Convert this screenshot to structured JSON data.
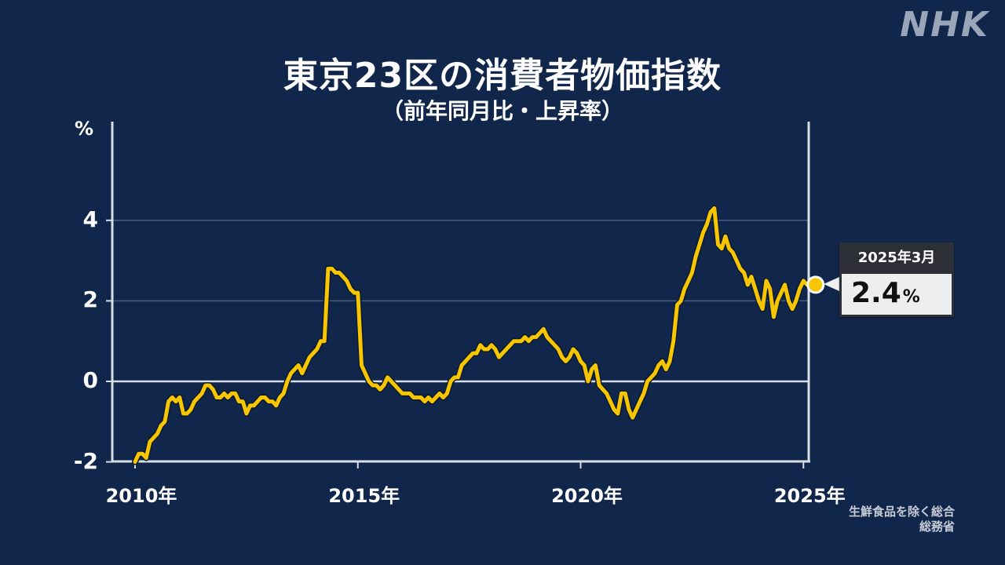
{
  "brand": {
    "logo_text": "NHK"
  },
  "header": {
    "title": "東京23区の消費者物価指数",
    "subtitle": "（前年同月比・上昇率）"
  },
  "axis": {
    "y_unit": "%",
    "y_ticks": [
      {
        "label": "4",
        "value": 4
      },
      {
        "label": "2",
        "value": 2
      },
      {
        "label": "0",
        "value": 0
      },
      {
        "label": "-2",
        "value": -2
      }
    ],
    "x_ticks": [
      {
        "label": "2010年",
        "value": 2010
      },
      {
        "label": "2015年",
        "value": 2015
      },
      {
        "label": "2020年",
        "value": 2020
      },
      {
        "label": "2025年",
        "value": 2025
      }
    ]
  },
  "callout": {
    "date": "2025年3月",
    "value": "2.4",
    "unit": "%"
  },
  "source": {
    "line1": "生鮮食品を除く総合",
    "line2": "総務省"
  },
  "colors": {
    "background": "#10264a",
    "line": "#f7c600",
    "axis": "#d8dde6",
    "gridline": "#4a5e80",
    "callout_header": "#2c2f36",
    "callout_body": "#eceef0"
  },
  "chart_data": {
    "type": "line",
    "title": "東京23区の消費者物価指数",
    "subtitle": "（前年同月比・上昇率）",
    "xlabel": "",
    "ylabel": "%",
    "ylim": [
      -2,
      6.4
    ],
    "xlim": [
      2009.5,
      2025.2
    ],
    "grid": "horizontal at 2 and 4; zero line emphasized",
    "legend": "none",
    "annotation": {
      "label": "2025年3月",
      "value": 2.4,
      "unit": "%"
    },
    "note": "生鮮食品を除く総合 / 総務省",
    "series": [
      {
        "name": "東京23区 CPI（生鮮食品を除く総合）前年同月比",
        "x": [
          2010.0,
          2010.083,
          2010.167,
          2010.25,
          2010.333,
          2010.417,
          2010.5,
          2010.583,
          2010.667,
          2010.75,
          2010.833,
          2010.917,
          2011.0,
          2011.083,
          2011.167,
          2011.25,
          2011.333,
          2011.417,
          2011.5,
          2011.583,
          2011.667,
          2011.75,
          2011.833,
          2011.917,
          2012.0,
          2012.083,
          2012.167,
          2012.25,
          2012.333,
          2012.417,
          2012.5,
          2012.583,
          2012.667,
          2012.75,
          2012.833,
          2012.917,
          2013.0,
          2013.083,
          2013.167,
          2013.25,
          2013.333,
          2013.417,
          2013.5,
          2013.583,
          2013.667,
          2013.75,
          2013.833,
          2013.917,
          2014.0,
          2014.083,
          2014.167,
          2014.25,
          2014.333,
          2014.417,
          2014.5,
          2014.583,
          2014.667,
          2014.75,
          2014.833,
          2014.917,
          2015.0,
          2015.083,
          2015.167,
          2015.25,
          2015.333,
          2015.417,
          2015.5,
          2015.583,
          2015.667,
          2015.75,
          2015.833,
          2015.917,
          2016.0,
          2016.083,
          2016.167,
          2016.25,
          2016.333,
          2016.417,
          2016.5,
          2016.583,
          2016.667,
          2016.75,
          2016.833,
          2016.917,
          2017.0,
          2017.083,
          2017.167,
          2017.25,
          2017.333,
          2017.417,
          2017.5,
          2017.583,
          2017.667,
          2017.75,
          2017.833,
          2017.917,
          2018.0,
          2018.083,
          2018.167,
          2018.25,
          2018.333,
          2018.417,
          2018.5,
          2018.583,
          2018.667,
          2018.75,
          2018.833,
          2018.917,
          2019.0,
          2019.083,
          2019.167,
          2019.25,
          2019.333,
          2019.417,
          2019.5,
          2019.583,
          2019.667,
          2019.75,
          2019.833,
          2019.917,
          2020.0,
          2020.083,
          2020.167,
          2020.25,
          2020.333,
          2020.417,
          2020.5,
          2020.583,
          2020.667,
          2020.75,
          2020.833,
          2020.917,
          2021.0,
          2021.083,
          2021.167,
          2021.25,
          2021.333,
          2021.417,
          2021.5,
          2021.583,
          2021.667,
          2021.75,
          2021.833,
          2021.917,
          2022.0,
          2022.083,
          2022.167,
          2022.25,
          2022.333,
          2022.417,
          2022.5,
          2022.583,
          2022.667,
          2022.75,
          2022.833,
          2022.917,
          2023.0,
          2023.083,
          2023.167,
          2023.25,
          2023.333,
          2023.417,
          2023.5,
          2023.583,
          2023.667,
          2023.75,
          2023.833,
          2023.917,
          2024.0,
          2024.083,
          2024.167,
          2024.25,
          2024.333,
          2024.417,
          2024.5,
          2024.583,
          2024.667,
          2024.75,
          2024.833,
          2024.917,
          2025.0,
          2025.083,
          2025.167
        ],
        "values": [
          -2.0,
          -1.8,
          -1.8,
          -1.9,
          -1.5,
          -1.4,
          -1.3,
          -1.1,
          -1.0,
          -0.5,
          -0.4,
          -0.5,
          -0.4,
          -0.8,
          -0.8,
          -0.7,
          -0.5,
          -0.4,
          -0.3,
          -0.1,
          -0.1,
          -0.2,
          -0.4,
          -0.4,
          -0.3,
          -0.4,
          -0.3,
          -0.3,
          -0.5,
          -0.5,
          -0.8,
          -0.6,
          -0.6,
          -0.5,
          -0.4,
          -0.4,
          -0.5,
          -0.5,
          -0.6,
          -0.4,
          -0.3,
          0.0,
          0.2,
          0.3,
          0.4,
          0.2,
          0.4,
          0.6,
          0.7,
          0.8,
          1.0,
          1.0,
          2.8,
          2.8,
          2.7,
          2.7,
          2.6,
          2.5,
          2.3,
          2.2,
          2.2,
          0.4,
          0.2,
          0.0,
          -0.1,
          -0.1,
          -0.2,
          -0.1,
          0.1,
          0.0,
          -0.1,
          -0.2,
          -0.3,
          -0.3,
          -0.3,
          -0.4,
          -0.4,
          -0.4,
          -0.5,
          -0.4,
          -0.5,
          -0.4,
          -0.3,
          -0.4,
          -0.3,
          0.0,
          0.1,
          0.1,
          0.4,
          0.5,
          0.6,
          0.7,
          0.7,
          0.9,
          0.8,
          0.8,
          0.9,
          0.8,
          0.6,
          0.7,
          0.8,
          0.9,
          1.0,
          1.0,
          1.0,
          1.1,
          1.0,
          1.1,
          1.1,
          1.2,
          1.3,
          1.1,
          1.0,
          0.9,
          0.8,
          0.6,
          0.5,
          0.6,
          0.8,
          0.7,
          0.5,
          0.4,
          0.0,
          0.3,
          0.4,
          -0.1,
          -0.2,
          -0.3,
          -0.5,
          -0.7,
          -0.8,
          -0.3,
          -0.3,
          -0.7,
          -0.9,
          -0.7,
          -0.5,
          -0.3,
          0.0,
          0.1,
          0.2,
          0.4,
          0.5,
          0.3,
          0.5,
          1.0,
          1.9,
          2.0,
          2.3,
          2.5,
          2.7,
          3.1,
          3.4,
          3.7,
          3.9,
          4.2,
          4.3,
          3.4,
          3.3,
          3.6,
          3.3,
          3.2,
          3.0,
          2.8,
          2.7,
          2.4,
          2.6,
          2.3,
          2.0,
          1.8,
          2.5,
          2.3,
          1.6,
          2.0,
          2.2,
          2.4,
          2.0,
          1.8,
          2.0,
          2.3,
          2.5,
          2.4,
          2.4
        ]
      }
    ]
  }
}
